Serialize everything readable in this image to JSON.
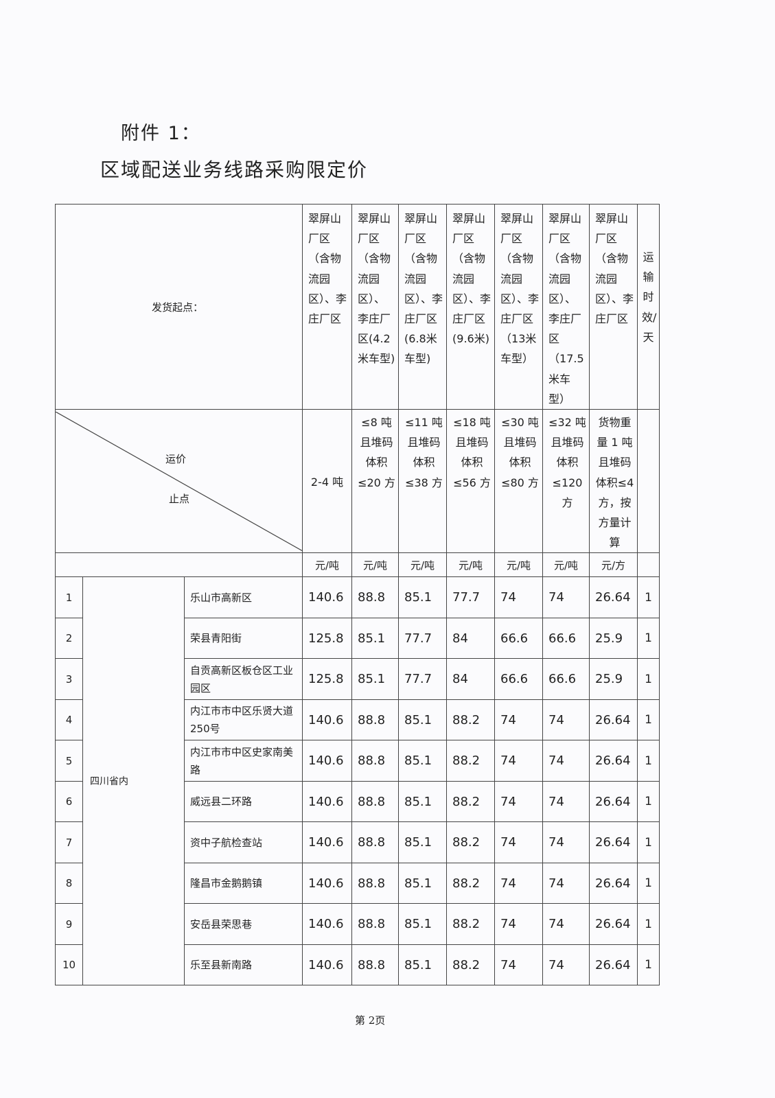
{
  "attachment_label": "附件 1：",
  "title": "区域配送业务线路采购限定价",
  "table": {
    "origin_label": "发货起点：",
    "freight_label": "运价",
    "stop_label": "止点",
    "origin_columns": [
      "翠屏山厂区（含物流园区）、李庄厂区",
      "翠屏山厂区（含物流园区）、李庄厂区(4.2米车型)",
      "翠屏山厂区（含物流园区）、李庄厂区(6.8米车型)",
      "翠屏山厂区（含物流园区）、李庄厂区(9.6米)",
      "翠屏山厂区（含物流园区）、李庄厂区（13米车型）",
      "翠屏山厂区（含物流园区）、李庄厂区（17.5米车型）",
      "翠屏山厂区（含物流园区）、李庄厂区"
    ],
    "transit_header": "运输时效/天",
    "conditions": [
      "2-4 吨",
      "≤8 吨且堆码体积≤20 方",
      "≤11 吨且堆码体积≤38 方",
      "≤18 吨且堆码体积≤56 方",
      "≤30 吨且堆码体积≤80 方",
      "≤32 吨且堆码体积≤120 方",
      "货物重量 1 吨且堆码体积≤4 方，按方量计算"
    ],
    "units": [
      "元/吨",
      "元/吨",
      "元/吨",
      "元/吨",
      "元/吨",
      "元/吨",
      "元/方"
    ],
    "region": "四川省内",
    "rows": [
      {
        "no": "1",
        "stop": "乐山市高新区",
        "prices": [
          "140.6",
          "88.8",
          "85.1",
          "77.7",
          "74",
          "74",
          "26.64"
        ],
        "days": "1"
      },
      {
        "no": "2",
        "stop": "荣县青阳街",
        "prices": [
          "125.8",
          "85.1",
          "77.7",
          "84",
          "66.6",
          "66.6",
          "25.9"
        ],
        "days": "1"
      },
      {
        "no": "3",
        "stop": "自贡高新区板仓区工业园区",
        "prices": [
          "125.8",
          "85.1",
          "77.7",
          "84",
          "66.6",
          "66.6",
          "25.9"
        ],
        "days": "1"
      },
      {
        "no": "4",
        "stop": "内江市市中区乐贤大道250号",
        "prices": [
          "140.6",
          "88.8",
          "85.1",
          "88.2",
          "74",
          "74",
          "26.64"
        ],
        "days": "1"
      },
      {
        "no": "5",
        "stop": "内江市市中区史家南美路",
        "prices": [
          "140.6",
          "88.8",
          "85.1",
          "88.2",
          "74",
          "74",
          "26.64"
        ],
        "days": "1"
      },
      {
        "no": "6",
        "stop": "威远县二环路",
        "prices": [
          "140.6",
          "88.8",
          "85.1",
          "88.2",
          "74",
          "74",
          "26.64"
        ],
        "days": "1"
      },
      {
        "no": "7",
        "stop": "资中子航检查站",
        "prices": [
          "140.6",
          "88.8",
          "85.1",
          "88.2",
          "74",
          "74",
          "26.64"
        ],
        "days": "1"
      },
      {
        "no": "8",
        "stop": "隆昌市金鹅鹅镇",
        "prices": [
          "140.6",
          "88.8",
          "85.1",
          "88.2",
          "74",
          "74",
          "26.64"
        ],
        "days": "1"
      },
      {
        "no": "9",
        "stop": "安岳县荣思巷",
        "prices": [
          "140.6",
          "88.8",
          "85.1",
          "88.2",
          "74",
          "74",
          "26.64"
        ],
        "days": "1"
      },
      {
        "no": "10",
        "stop": "乐至县新南路",
        "prices": [
          "140.6",
          "88.8",
          "85.1",
          "88.2",
          "74",
          "74",
          "26.64"
        ],
        "days": "1"
      }
    ]
  },
  "footer": "第 2页"
}
